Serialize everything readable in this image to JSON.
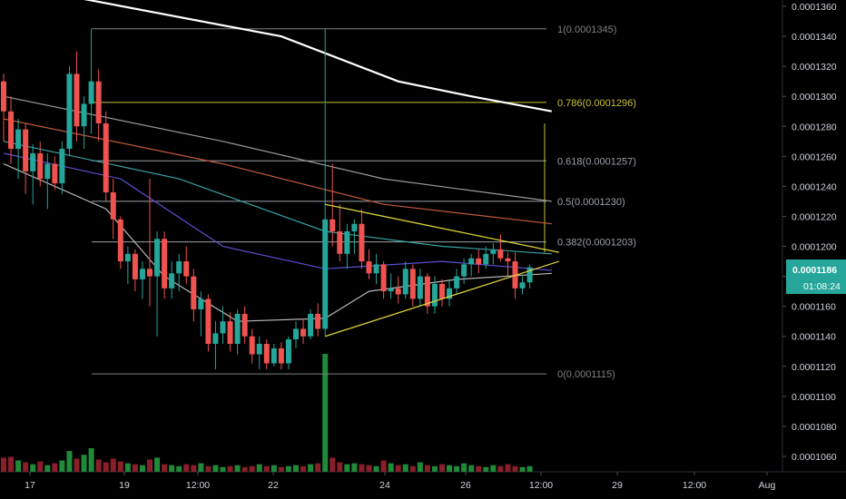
{
  "chart_data": {
    "type": "candlestick",
    "title": "",
    "price_axis": {
      "ticks": [
        "0.0001360",
        "0.0001340",
        "0.0001320",
        "0.0001300",
        "0.0001280",
        "0.0001260",
        "0.0001240",
        "0.0001220",
        "0.0001200",
        "0.0001180",
        "0.0001160",
        "0.0001140",
        "0.0001120",
        "0.0001100",
        "0.0001080",
        "0.0001060"
      ],
      "range": [
        0.0001054,
        0.0001362
      ],
      "current_price": "0.0001186",
      "countdown": "01:08:24"
    },
    "time_axis": {
      "ticks": [
        "17",
        "19",
        "12:00",
        "22",
        "24",
        "26",
        "12:00",
        "29",
        "12:00",
        "Aug"
      ]
    },
    "fib_levels": [
      {
        "ratio": "1",
        "price": "0.0001345",
        "value": 0.0001345
      },
      {
        "ratio": "0.786",
        "price": "0.0001296",
        "value": 0.0001296
      },
      {
        "ratio": "0.618",
        "price": "0.0001257",
        "value": 0.0001257
      },
      {
        "ratio": "0.5",
        "price": "0.0001230",
        "value": 0.000123
      },
      {
        "ratio": "0.382",
        "price": "0.0001203",
        "value": 0.0001203
      },
      {
        "ratio": "0",
        "price": "0.0001115",
        "value": 0.0001115
      }
    ],
    "candles": [
      [
        0.000131,
        0.0001315,
        0.000127,
        0.000129
      ],
      [
        0.000129,
        0.00013,
        0.0001255,
        0.0001265
      ],
      [
        0.0001265,
        0.0001285,
        0.0001245,
        0.0001278
      ],
      [
        0.0001278,
        0.0001282,
        0.0001235,
        0.000125
      ],
      [
        0.000125,
        0.0001268,
        0.0001228,
        0.0001262
      ],
      [
        0.0001262,
        0.000127,
        0.000124,
        0.0001245
      ],
      [
        0.0001245,
        0.0001262,
        0.0001225,
        0.0001255
      ],
      [
        0.0001255,
        0.000126,
        0.0001238,
        0.0001242
      ],
      [
        0.0001242,
        0.000127,
        0.0001235,
        0.0001265
      ],
      [
        0.0001265,
        0.000132,
        0.000126,
        0.0001315
      ],
      [
        0.0001315,
        0.000133,
        0.000127,
        0.000128
      ],
      [
        0.000128,
        0.00013,
        0.0001265,
        0.0001295
      ],
      [
        0.0001295,
        0.0001345,
        0.0001275,
        0.000131
      ],
      [
        0.000131,
        0.0001318,
        0.000127,
        0.0001282
      ],
      [
        0.0001282,
        0.000129,
        0.000123,
        0.0001236
      ],
      [
        0.0001236,
        0.0001245,
        0.0001205,
        0.0001218
      ],
      [
        0.0001218,
        0.000122,
        0.0001185,
        0.000119
      ],
      [
        0.000119,
        0.00012,
        0.0001175,
        0.0001195
      ],
      [
        0.0001195,
        0.0001198,
        0.000117,
        0.0001178
      ],
      [
        0.0001178,
        0.000119,
        0.0001165,
        0.0001185
      ],
      [
        0.0001185,
        0.0001245,
        0.000116,
        0.000118
      ],
      [
        0.000118,
        0.000121,
        0.000114,
        0.0001205
      ],
      [
        0.0001205,
        0.000121,
        0.0001165,
        0.0001172
      ],
      [
        0.0001172,
        0.000119,
        0.0001165,
        0.0001182
      ],
      [
        0.0001182,
        0.0001195,
        0.000117,
        0.000119
      ],
      [
        0.000119,
        0.00012,
        0.0001175,
        0.000118
      ],
      [
        0.000118,
        0.0001185,
        0.000115,
        0.0001158
      ],
      [
        0.0001158,
        0.000117,
        0.000114,
        0.0001165
      ],
      [
        0.0001165,
        0.0001168,
        0.000113,
        0.0001135
      ],
      [
        0.0001135,
        0.000115,
        0.0001118,
        0.0001142
      ],
      [
        0.0001142,
        0.000116,
        0.0001135,
        0.000115
      ],
      [
        0.000115,
        0.0001156,
        0.000113,
        0.0001135
      ],
      [
        0.0001135,
        0.0001158,
        0.0001128,
        0.0001155
      ],
      [
        0.0001155,
        0.000116,
        0.0001135,
        0.000114
      ],
      [
        0.000114,
        0.0001145,
        0.0001122,
        0.0001128
      ],
      [
        0.0001128,
        0.000114,
        0.0001118,
        0.0001135
      ],
      [
        0.0001135,
        0.0001138,
        0.0001118,
        0.0001122
      ],
      [
        0.0001122,
        0.0001135,
        0.000112,
        0.0001132
      ],
      [
        0.0001132,
        0.0001136,
        0.0001118,
        0.0001122
      ],
      [
        0.0001122,
        0.000114,
        0.0001118,
        0.0001138
      ],
      [
        0.0001138,
        0.000115,
        0.0001132,
        0.0001145
      ],
      [
        0.0001145,
        0.0001152,
        0.0001135,
        0.000114
      ],
      [
        0.000114,
        0.0001158,
        0.0001138,
        0.0001155
      ],
      [
        0.0001155,
        0.0001162,
        0.000114,
        0.0001145
      ],
      [
        0.0001145,
        0.0001345,
        0.000114,
        0.0001218
      ],
      [
        0.0001218,
        0.0001255,
        0.00012,
        0.000121
      ],
      [
        0.000121,
        0.0001228,
        0.000119,
        0.0001195
      ],
      [
        0.0001195,
        0.0001215,
        0.0001185,
        0.000121
      ],
      [
        0.000121,
        0.0001218,
        0.0001195,
        0.0001215
      ],
      [
        0.0001215,
        0.0001225,
        0.0001185,
        0.000119
      ],
      [
        0.000119,
        0.0001198,
        0.0001178,
        0.0001182
      ],
      [
        0.0001182,
        0.0001195,
        0.0001175,
        0.0001188
      ],
      [
        0.0001188,
        0.000119,
        0.0001165,
        0.000117
      ],
      [
        0.000117,
        0.0001182,
        0.0001165,
        0.0001172
      ],
      [
        0.0001172,
        0.000118,
        0.0001162,
        0.0001168
      ],
      [
        0.0001168,
        0.000119,
        0.0001165,
        0.0001185
      ],
      [
        0.0001185,
        0.0001188,
        0.000116,
        0.0001165
      ],
      [
        0.0001165,
        0.0001185,
        0.000116,
        0.000118
      ],
      [
        0.000118,
        0.0001182,
        0.0001155,
        0.000116
      ],
      [
        0.000116,
        0.000118,
        0.0001155,
        0.0001175
      ],
      [
        0.0001175,
        0.0001178,
        0.000116,
        0.0001165
      ],
      [
        0.0001165,
        0.0001178,
        0.000116,
        0.0001172
      ],
      [
        0.0001172,
        0.0001185,
        0.0001168,
        0.000118
      ],
      [
        0.000118,
        0.0001192,
        0.0001175,
        0.0001188
      ],
      [
        0.0001188,
        0.0001195,
        0.000118,
        0.0001192
      ],
      [
        0.0001192,
        0.0001198,
        0.0001182,
        0.0001188
      ],
      [
        0.0001188,
        0.00012,
        0.0001185,
        0.0001195
      ],
      [
        0.0001195,
        0.0001202,
        0.0001188,
        0.0001198
      ],
      [
        0.0001198,
        0.0001208,
        0.000119,
        0.0001192
      ],
      [
        0.0001192,
        0.0001196,
        0.000118,
        0.000119
      ],
      [
        0.000119,
        0.0001196,
        0.0001165,
        0.0001172
      ],
      [
        0.0001172,
        0.000118,
        0.0001168,
        0.0001176
      ],
      [
        0.0001176,
        0.0001188,
        0.0001172,
        0.0001186
      ]
    ],
    "volumes": [
      1.5,
      1.6,
      1.2,
      1.0,
      0.8,
      1.1,
      0.7,
      0.9,
      1.2,
      2.2,
      1.4,
      1.8,
      2.5,
      1.3,
      1.0,
      1.4,
      1.1,
      0.9,
      0.8,
      0.7,
      1.3,
      1.5,
      0.8,
      0.7,
      0.6,
      0.8,
      0.7,
      0.9,
      0.6,
      0.7,
      0.5,
      0.6,
      0.7,
      0.5,
      0.6,
      0.8,
      0.6,
      0.7,
      0.5,
      0.6,
      0.7,
      0.6,
      0.8,
      0.9,
      12.5,
      1.5,
      1.0,
      0.8,
      0.9,
      0.8,
      0.7,
      0.6,
      1.2,
      0.9,
      0.7,
      0.8,
      0.6,
      1.0,
      0.7,
      0.6,
      0.8,
      0.7,
      0.6,
      0.9,
      0.7,
      0.6,
      0.5,
      0.7,
      0.6,
      0.8,
      0.6,
      0.5,
      0.6
    ],
    "moving_averages": [
      {
        "color": "#ffffff",
        "points": [
          [
            0.0001375,
            0
          ],
          [
            0.000134,
            38
          ],
          [
            0.000131,
            54
          ],
          [
            0.00013,
            64
          ],
          [
            0.000129,
            75
          ]
        ]
      },
      {
        "color": "#9a9a9a",
        "points": [
          [
            0.00013,
            0
          ],
          [
            0.000127,
            30
          ],
          [
            0.0001245,
            52
          ],
          [
            0.000123,
            75
          ]
        ]
      },
      {
        "color": "#c05a3a",
        "points": [
          [
            0.0001285,
            0
          ],
          [
            0.0001255,
            30
          ],
          [
            0.0001228,
            52
          ],
          [
            0.0001215,
            75
          ]
        ]
      },
      {
        "color": "#3aa3a3",
        "points": [
          [
            0.000127,
            0
          ],
          [
            0.0001245,
            24
          ],
          [
            0.000121,
            44
          ],
          [
            0.00012,
            60
          ],
          [
            0.0001195,
            75
          ]
        ]
      },
      {
        "color": "#5b4fd0",
        "points": [
          [
            0.0001262,
            0
          ],
          [
            0.0001245,
            16
          ],
          [
            0.00012,
            30
          ],
          [
            0.0001185,
            44
          ],
          [
            0.000119,
            60
          ],
          [
            0.0001184,
            75
          ]
        ]
      },
      {
        "color": "#b8b8b8",
        "points": [
          [
            0.0001255,
            0
          ],
          [
            0.0001225,
            14
          ],
          [
            0.000118,
            22
          ],
          [
            0.000115,
            32
          ],
          [
            0.0001152,
            44
          ],
          [
            0.000117,
            50
          ],
          [
            0.0001178,
            62
          ],
          [
            0.0001182,
            75
          ]
        ]
      }
    ],
    "triangle": {
      "upper": [
        [
          0.0001228,
          44
        ],
        [
          0.0001196,
          76
        ]
      ],
      "lower": [
        [
          0.000114,
          44
        ],
        [
          0.000119,
          76
        ]
      ]
    }
  }
}
